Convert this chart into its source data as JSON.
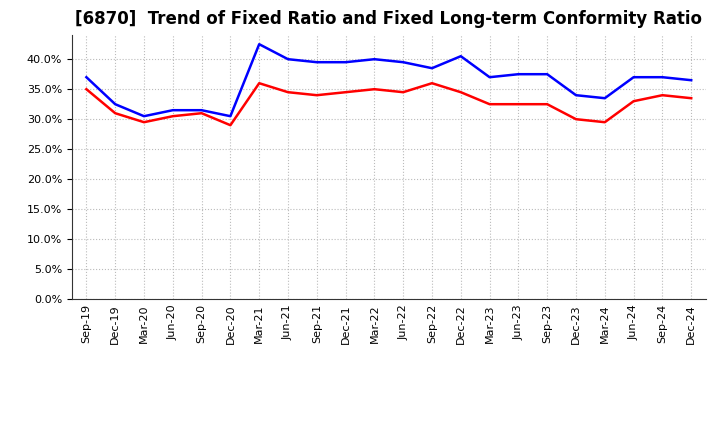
{
  "title": "[6870]  Trend of Fixed Ratio and Fixed Long-term Conformity Ratio",
  "labels": [
    "Sep-19",
    "Dec-19",
    "Mar-20",
    "Jun-20",
    "Sep-20",
    "Dec-20",
    "Mar-21",
    "Jun-21",
    "Sep-21",
    "Dec-21",
    "Mar-22",
    "Jun-22",
    "Sep-22",
    "Dec-22",
    "Mar-23",
    "Jun-23",
    "Sep-23",
    "Dec-23",
    "Mar-24",
    "Jun-24",
    "Sep-24",
    "Dec-24"
  ],
  "fixed_ratio": [
    37.0,
    32.5,
    30.5,
    31.5,
    31.5,
    30.5,
    42.5,
    40.0,
    39.5,
    39.5,
    40.0,
    39.5,
    38.5,
    40.5,
    37.0,
    37.5,
    37.5,
    34.0,
    33.5,
    37.0,
    37.0,
    36.5
  ],
  "fixed_lt_ratio": [
    35.0,
    31.0,
    29.5,
    30.5,
    31.0,
    29.0,
    36.0,
    34.5,
    34.0,
    34.5,
    35.0,
    34.5,
    36.0,
    34.5,
    32.5,
    32.5,
    32.5,
    30.0,
    29.5,
    33.0,
    34.0,
    33.5
  ],
  "fixed_ratio_color": "#0000FF",
  "fixed_lt_ratio_color": "#FF0000",
  "ylim": [
    0,
    44
  ],
  "yticks": [
    0,
    5,
    10,
    15,
    20,
    25,
    30,
    35,
    40
  ],
  "background_color": "#FFFFFF",
  "plot_bg_color": "#FFFFFF",
  "grid_color": "#AAAAAA",
  "title_fontsize": 12,
  "legend_fontsize": 9,
  "tick_fontsize": 8
}
